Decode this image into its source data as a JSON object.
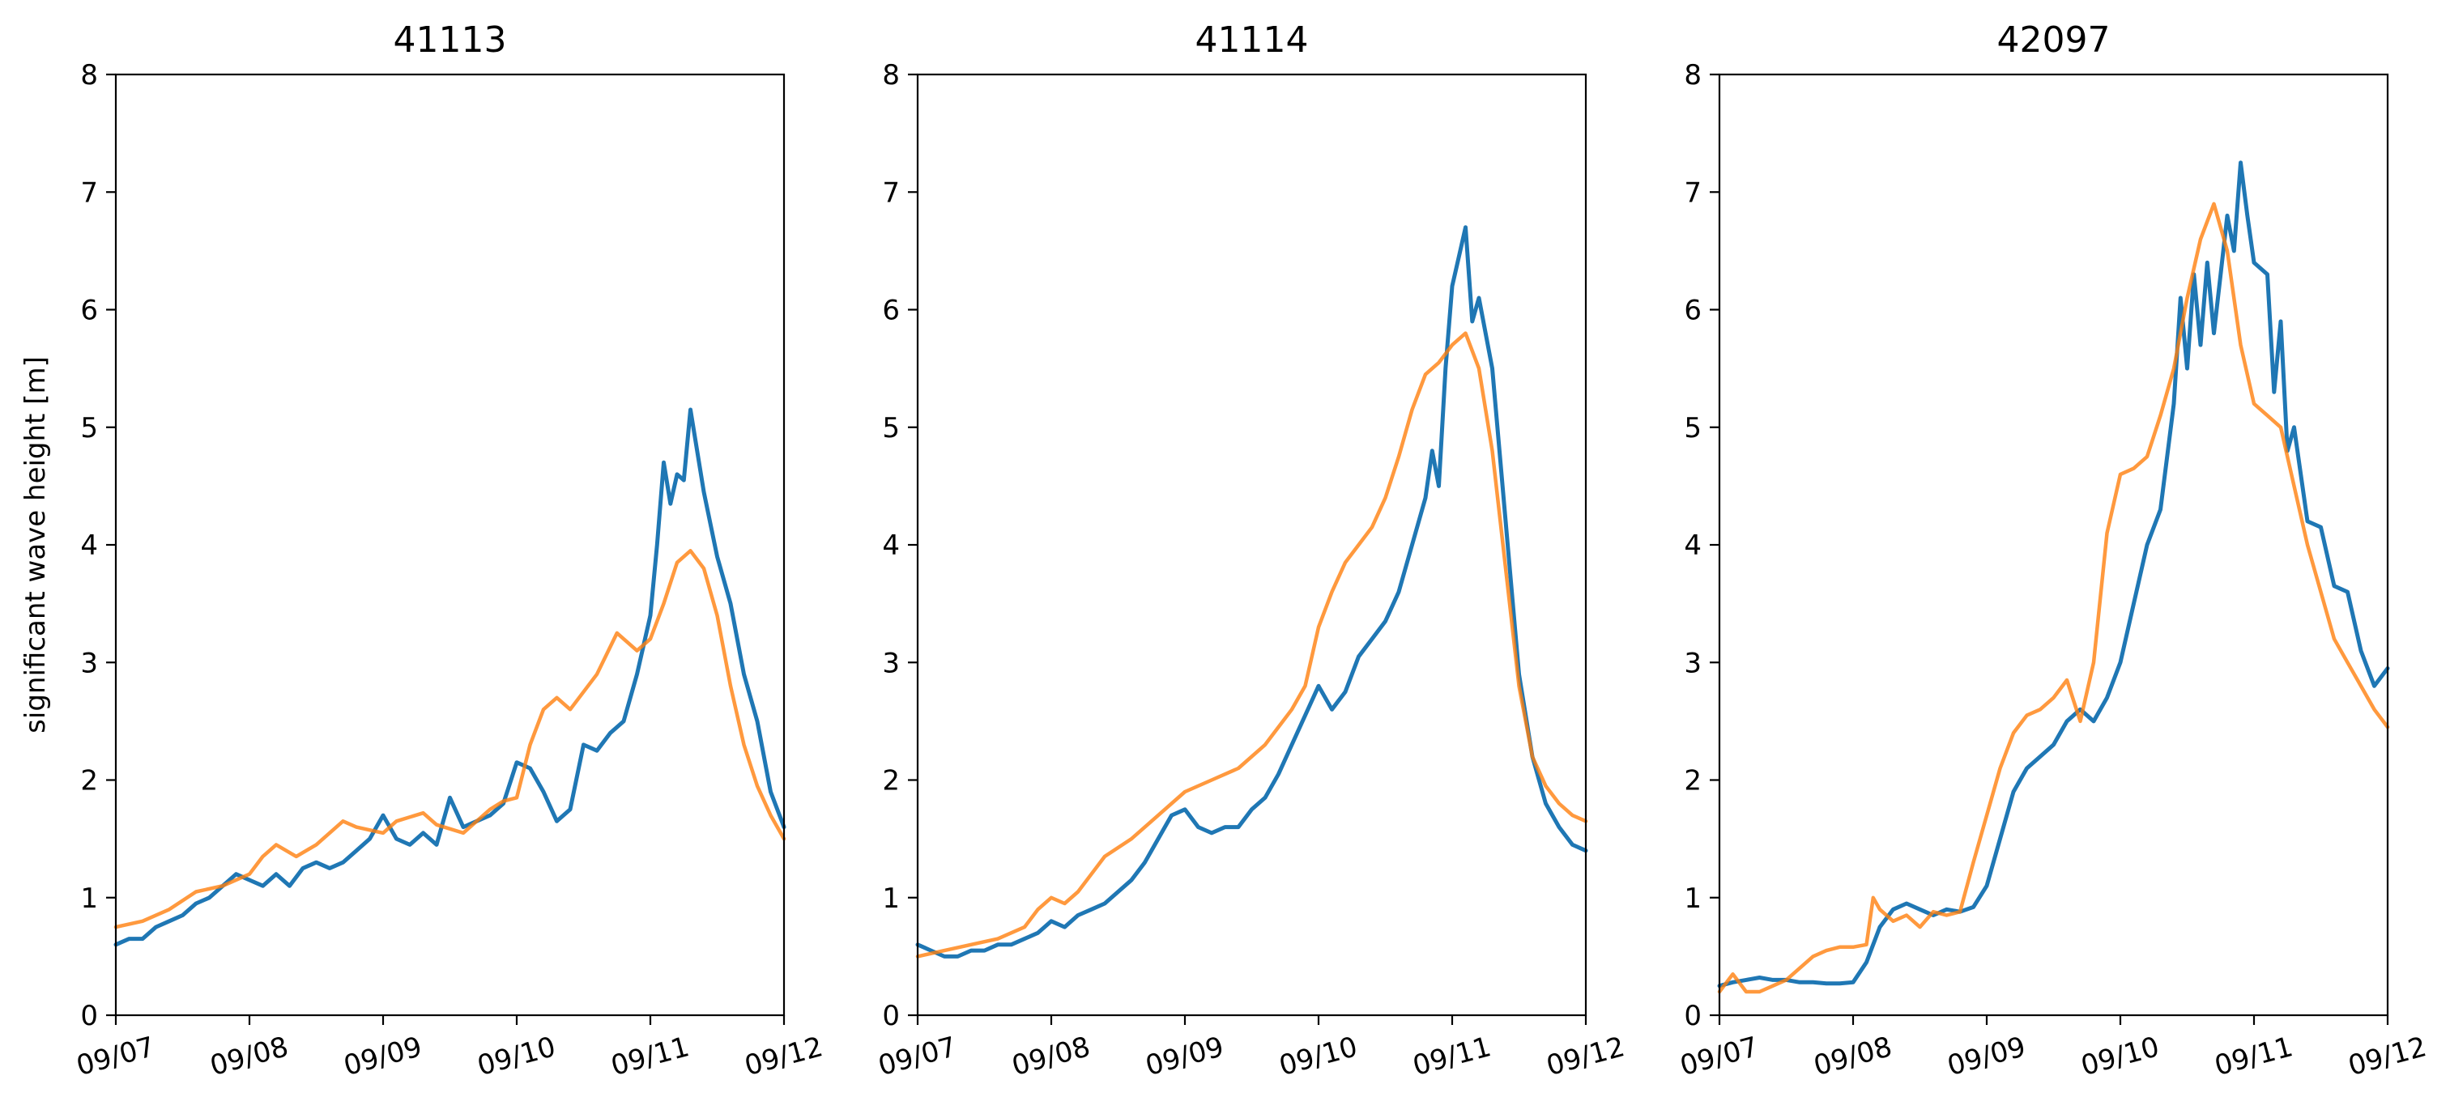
{
  "chart_data": [
    {
      "type": "line",
      "title": "41113",
      "xlabel": "",
      "ylabel": "significant wave height [m]",
      "x_ticks": [
        "09/07",
        "09/08",
        "09/09",
        "09/10",
        "09/11",
        "09/12"
      ],
      "y_ticks": [
        0,
        1,
        2,
        3,
        4,
        5,
        6,
        7,
        8
      ],
      "xlim": [
        0,
        5
      ],
      "ylim": [
        0,
        8
      ],
      "grid": false,
      "series": [
        {
          "color": "#1f77b4",
          "x": [
            0,
            0.1,
            0.2,
            0.3,
            0.4,
            0.5,
            0.6,
            0.7,
            0.8,
            0.9,
            1.0,
            1.1,
            1.2,
            1.3,
            1.4,
            1.5,
            1.6,
            1.7,
            1.8,
            1.9,
            2.0,
            2.1,
            2.2,
            2.3,
            2.4,
            2.5,
            2.6,
            2.7,
            2.8,
            2.9,
            3.0,
            3.1,
            3.2,
            3.3,
            3.4,
            3.5,
            3.6,
            3.7,
            3.8,
            3.9,
            4.0,
            4.05,
            4.1,
            4.15,
            4.2,
            4.25,
            4.3,
            4.4,
            4.5,
            4.6,
            4.7,
            4.8,
            4.9,
            5.0
          ],
          "y": [
            0.6,
            0.65,
            0.65,
            0.75,
            0.8,
            0.85,
            0.95,
            1.0,
            1.1,
            1.2,
            1.15,
            1.1,
            1.2,
            1.1,
            1.25,
            1.3,
            1.25,
            1.3,
            1.4,
            1.5,
            1.7,
            1.5,
            1.45,
            1.55,
            1.45,
            1.85,
            1.6,
            1.65,
            1.7,
            1.8,
            2.15,
            2.1,
            1.9,
            1.65,
            1.75,
            2.3,
            2.25,
            2.4,
            2.5,
            2.9,
            3.4,
            4.0,
            4.7,
            4.35,
            4.6,
            4.55,
            5.15,
            4.45,
            3.9,
            3.5,
            2.9,
            2.5,
            1.9,
            1.6
          ]
        },
        {
          "color": "#ff7f0e",
          "x": [
            0,
            0.2,
            0.4,
            0.6,
            0.8,
            1.0,
            1.1,
            1.2,
            1.35,
            1.5,
            1.7,
            1.8,
            2.0,
            2.1,
            2.3,
            2.4,
            2.6,
            2.8,
            2.9,
            3.0,
            3.1,
            3.2,
            3.3,
            3.4,
            3.6,
            3.75,
            3.9,
            4.0,
            4.1,
            4.2,
            4.3,
            4.4,
            4.5,
            4.6,
            4.7,
            4.8,
            4.9,
            5.0
          ],
          "y": [
            0.75,
            0.8,
            0.9,
            1.05,
            1.1,
            1.2,
            1.35,
            1.45,
            1.35,
            1.45,
            1.65,
            1.6,
            1.55,
            1.65,
            1.72,
            1.62,
            1.55,
            1.75,
            1.82,
            1.85,
            2.3,
            2.6,
            2.7,
            2.6,
            2.9,
            3.25,
            3.1,
            3.2,
            3.5,
            3.85,
            3.95,
            3.8,
            3.4,
            2.8,
            2.3,
            1.95,
            1.7,
            1.5
          ]
        }
      ]
    },
    {
      "type": "line",
      "title": "41114",
      "xlabel": "",
      "ylabel": "",
      "x_ticks": [
        "09/07",
        "09/08",
        "09/09",
        "09/10",
        "09/11",
        "09/12"
      ],
      "y_ticks": [
        0,
        1,
        2,
        3,
        4,
        5,
        6,
        7,
        8
      ],
      "xlim": [
        0,
        5
      ],
      "ylim": [
        0,
        8
      ],
      "grid": false,
      "series": [
        {
          "color": "#1f77b4",
          "x": [
            0,
            0.1,
            0.2,
            0.3,
            0.4,
            0.5,
            0.6,
            0.7,
            0.8,
            0.9,
            1.0,
            1.1,
            1.2,
            1.3,
            1.4,
            1.5,
            1.6,
            1.7,
            1.8,
            1.9,
            2.0,
            2.1,
            2.2,
            2.3,
            2.4,
            2.5,
            2.6,
            2.7,
            2.8,
            2.9,
            3.0,
            3.1,
            3.2,
            3.3,
            3.4,
            3.5,
            3.6,
            3.7,
            3.8,
            3.85,
            3.9,
            3.95,
            4.0,
            4.05,
            4.1,
            4.15,
            4.2,
            4.3,
            4.4,
            4.5,
            4.6,
            4.7,
            4.8,
            4.9,
            5.0
          ],
          "y": [
            0.6,
            0.55,
            0.5,
            0.5,
            0.55,
            0.55,
            0.6,
            0.6,
            0.65,
            0.7,
            0.8,
            0.75,
            0.85,
            0.9,
            0.95,
            1.05,
            1.15,
            1.3,
            1.5,
            1.7,
            1.75,
            1.6,
            1.55,
            1.6,
            1.6,
            1.75,
            1.85,
            2.05,
            2.3,
            2.55,
            2.8,
            2.6,
            2.75,
            3.05,
            3.2,
            3.35,
            3.6,
            4.0,
            4.4,
            4.8,
            4.5,
            5.5,
            6.2,
            6.45,
            6.7,
            5.9,
            6.1,
            5.5,
            4.2,
            2.9,
            2.2,
            1.8,
            1.6,
            1.45,
            1.4
          ]
        },
        {
          "color": "#ff7f0e",
          "x": [
            0,
            0.2,
            0.4,
            0.6,
            0.8,
            0.9,
            1.0,
            1.1,
            1.2,
            1.3,
            1.4,
            1.6,
            1.8,
            2.0,
            2.2,
            2.4,
            2.6,
            2.8,
            2.9,
            3.0,
            3.1,
            3.2,
            3.3,
            3.4,
            3.5,
            3.6,
            3.7,
            3.8,
            3.9,
            4.0,
            4.1,
            4.2,
            4.3,
            4.4,
            4.5,
            4.6,
            4.7,
            4.8,
            4.9,
            5.0
          ],
          "y": [
            0.5,
            0.55,
            0.6,
            0.65,
            0.75,
            0.9,
            1.0,
            0.95,
            1.05,
            1.2,
            1.35,
            1.5,
            1.7,
            1.9,
            2.0,
            2.1,
            2.3,
            2.6,
            2.8,
            3.3,
            3.6,
            3.85,
            4.0,
            4.15,
            4.4,
            4.75,
            5.15,
            5.45,
            5.55,
            5.7,
            5.8,
            5.5,
            4.8,
            3.8,
            2.8,
            2.2,
            1.95,
            1.8,
            1.7,
            1.65
          ]
        }
      ]
    },
    {
      "type": "line",
      "title": "42097",
      "xlabel": "",
      "ylabel": "",
      "x_ticks": [
        "09/07",
        "09/08",
        "09/09",
        "09/10",
        "09/11",
        "09/12"
      ],
      "y_ticks": [
        0,
        1,
        2,
        3,
        4,
        5,
        6,
        7,
        8
      ],
      "xlim": [
        0,
        5
      ],
      "ylim": [
        0,
        8
      ],
      "grid": false,
      "series": [
        {
          "color": "#1f77b4",
          "x": [
            0,
            0.1,
            0.2,
            0.3,
            0.4,
            0.5,
            0.6,
            0.7,
            0.8,
            0.9,
            1.0,
            1.1,
            1.2,
            1.3,
            1.4,
            1.5,
            1.6,
            1.7,
            1.8,
            1.9,
            2.0,
            2.1,
            2.2,
            2.3,
            2.4,
            2.5,
            2.6,
            2.7,
            2.8,
            2.9,
            3.0,
            3.1,
            3.2,
            3.3,
            3.4,
            3.45,
            3.5,
            3.55,
            3.6,
            3.65,
            3.7,
            3.75,
            3.8,
            3.85,
            3.9,
            3.95,
            4.0,
            4.1,
            4.15,
            4.2,
            4.25,
            4.3,
            4.4,
            4.5,
            4.6,
            4.7,
            4.8,
            4.9,
            5.0
          ],
          "y": [
            0.25,
            0.28,
            0.3,
            0.32,
            0.3,
            0.3,
            0.28,
            0.28,
            0.27,
            0.27,
            0.28,
            0.45,
            0.75,
            0.9,
            0.95,
            0.9,
            0.85,
            0.9,
            0.88,
            0.92,
            1.1,
            1.5,
            1.9,
            2.1,
            2.2,
            2.3,
            2.5,
            2.6,
            2.5,
            2.7,
            3.0,
            3.5,
            4.0,
            4.3,
            5.2,
            6.1,
            5.5,
            6.3,
            5.7,
            6.4,
            5.8,
            6.3,
            6.8,
            6.5,
            7.25,
            6.8,
            6.4,
            6.3,
            5.3,
            5.9,
            4.8,
            5.0,
            4.2,
            4.15,
            3.65,
            3.6,
            3.1,
            2.8,
            2.95
          ]
        },
        {
          "color": "#ff7f0e",
          "x": [
            0,
            0.1,
            0.2,
            0.3,
            0.4,
            0.5,
            0.6,
            0.7,
            0.8,
            0.9,
            1.0,
            1.1,
            1.15,
            1.2,
            1.3,
            1.4,
            1.5,
            1.6,
            1.7,
            1.8,
            1.9,
            2.0,
            2.1,
            2.2,
            2.3,
            2.4,
            2.5,
            2.6,
            2.7,
            2.8,
            2.9,
            3.0,
            3.1,
            3.2,
            3.3,
            3.4,
            3.5,
            3.6,
            3.7,
            3.8,
            3.9,
            4.0,
            4.1,
            4.2,
            4.3,
            4.4,
            4.5,
            4.6,
            4.7,
            4.8,
            4.9,
            5.0
          ],
          "y": [
            0.2,
            0.35,
            0.2,
            0.2,
            0.25,
            0.3,
            0.4,
            0.5,
            0.55,
            0.58,
            0.58,
            0.6,
            1.0,
            0.9,
            0.8,
            0.85,
            0.75,
            0.88,
            0.85,
            0.88,
            1.3,
            1.7,
            2.1,
            2.4,
            2.55,
            2.6,
            2.7,
            2.85,
            2.5,
            3.0,
            4.1,
            4.6,
            4.65,
            4.75,
            5.1,
            5.5,
            6.1,
            6.6,
            6.9,
            6.5,
            5.7,
            5.2,
            5.1,
            5.0,
            4.5,
            4.0,
            3.6,
            3.2,
            3.0,
            2.8,
            2.6,
            2.45
          ]
        }
      ]
    }
  ]
}
